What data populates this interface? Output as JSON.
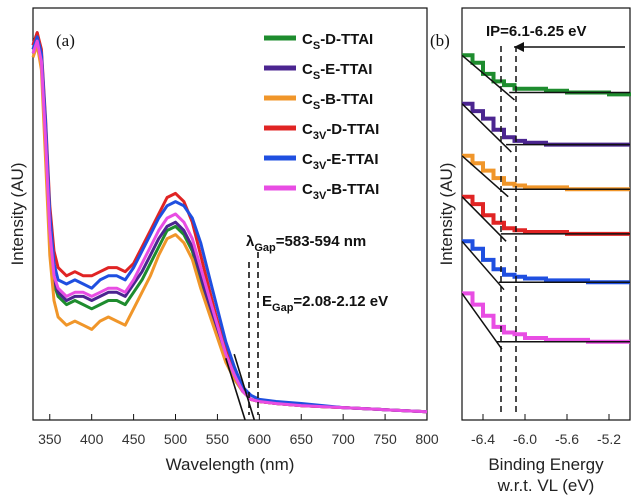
{
  "chart_data": [
    {
      "type": "line",
      "panel_label": "(a)",
      "xlabel": "Wavelength (nm)",
      "ylabel": "Intensity (AU)",
      "xlim": [
        330,
        800
      ],
      "ylim": [
        0,
        1
      ],
      "xticks": [
        350,
        400,
        450,
        500,
        550,
        600,
        650,
        700,
        750,
        800
      ],
      "grid": false,
      "legend_position": "top-right",
      "annotations": {
        "lambda": {
          "symbol": "λ",
          "sub": "Gap",
          "text": "=583-594 nm",
          "values_nm": [
            583,
            594
          ]
        },
        "egap": {
          "symbol": "E",
          "sub": "Gap",
          "text": "=2.08-2.12 eV"
        }
      },
      "series": [
        {
          "main": "C",
          "sub": "S",
          "suffix": "-D-TTAI",
          "color": "#1e8c2e",
          "x": [
            330,
            335,
            340,
            345,
            350,
            355,
            360,
            370,
            380,
            390,
            400,
            410,
            420,
            430,
            440,
            450,
            460,
            470,
            480,
            490,
            500,
            510,
            520,
            530,
            540,
            550,
            560,
            570,
            580,
            590,
            600,
            620,
            650,
            700,
            750,
            800
          ],
          "y": [
            0.9,
            0.93,
            0.88,
            0.68,
            0.45,
            0.33,
            0.3,
            0.28,
            0.29,
            0.28,
            0.27,
            0.28,
            0.29,
            0.29,
            0.28,
            0.31,
            0.34,
            0.38,
            0.42,
            0.46,
            0.47,
            0.45,
            0.41,
            0.34,
            0.27,
            0.21,
            0.15,
            0.1,
            0.07,
            0.05,
            0.045,
            0.04,
            0.035,
            0.03,
            0.025,
            0.02
          ]
        },
        {
          "main": "C",
          "sub": "S",
          "suffix": "-E-TTAI",
          "color": "#4b2590",
          "x": [
            330,
            335,
            340,
            345,
            350,
            355,
            360,
            370,
            380,
            390,
            400,
            410,
            420,
            430,
            440,
            450,
            460,
            470,
            480,
            490,
            500,
            510,
            520,
            530,
            540,
            550,
            560,
            570,
            580,
            590,
            600,
            620,
            650,
            700,
            750,
            800
          ],
          "y": [
            0.91,
            0.94,
            0.89,
            0.7,
            0.47,
            0.34,
            0.31,
            0.29,
            0.3,
            0.3,
            0.29,
            0.3,
            0.31,
            0.31,
            0.3,
            0.33,
            0.36,
            0.4,
            0.44,
            0.47,
            0.48,
            0.46,
            0.42,
            0.35,
            0.28,
            0.22,
            0.16,
            0.11,
            0.07,
            0.05,
            0.045,
            0.04,
            0.035,
            0.03,
            0.025,
            0.02
          ]
        },
        {
          "main": "C",
          "sub": "S",
          "suffix": "-B-TTAI",
          "color": "#f0962a",
          "x": [
            330,
            335,
            340,
            345,
            350,
            355,
            360,
            370,
            380,
            390,
            400,
            410,
            420,
            430,
            440,
            450,
            460,
            470,
            480,
            490,
            500,
            510,
            520,
            530,
            540,
            550,
            560,
            570,
            580,
            590,
            600,
            620,
            650,
            700,
            750,
            800
          ],
          "y": [
            0.88,
            0.91,
            0.85,
            0.63,
            0.4,
            0.29,
            0.25,
            0.23,
            0.24,
            0.23,
            0.22,
            0.24,
            0.25,
            0.24,
            0.23,
            0.27,
            0.31,
            0.35,
            0.4,
            0.44,
            0.45,
            0.43,
            0.39,
            0.32,
            0.26,
            0.2,
            0.14,
            0.1,
            0.07,
            0.05,
            0.045,
            0.04,
            0.035,
            0.03,
            0.025,
            0.02
          ]
        },
        {
          "main": "C",
          "sub": "3V",
          "suffix": "-D-TTAI",
          "color": "#e02424",
          "x": [
            330,
            335,
            340,
            345,
            350,
            355,
            360,
            370,
            380,
            390,
            400,
            410,
            420,
            430,
            440,
            450,
            460,
            470,
            480,
            490,
            500,
            510,
            520,
            530,
            540,
            550,
            560,
            570,
            580,
            590,
            600,
            620,
            650,
            700,
            750,
            800
          ],
          "y": [
            0.91,
            0.94,
            0.9,
            0.73,
            0.52,
            0.41,
            0.37,
            0.35,
            0.36,
            0.35,
            0.35,
            0.36,
            0.37,
            0.37,
            0.36,
            0.38,
            0.42,
            0.46,
            0.5,
            0.54,
            0.55,
            0.53,
            0.48,
            0.4,
            0.32,
            0.24,
            0.17,
            0.11,
            0.07,
            0.05,
            0.045,
            0.04,
            0.035,
            0.03,
            0.025,
            0.02
          ]
        },
        {
          "main": "C",
          "sub": "3V",
          "suffix": "-E-TTAI",
          "color": "#1f4fe0",
          "x": [
            330,
            335,
            340,
            345,
            350,
            355,
            360,
            370,
            380,
            390,
            400,
            410,
            420,
            430,
            440,
            450,
            460,
            470,
            480,
            490,
            500,
            510,
            520,
            530,
            540,
            550,
            560,
            570,
            580,
            590,
            600,
            620,
            650,
            700,
            750,
            800
          ],
          "y": [
            0.9,
            0.93,
            0.89,
            0.72,
            0.5,
            0.38,
            0.34,
            0.33,
            0.34,
            0.33,
            0.32,
            0.34,
            0.35,
            0.35,
            0.34,
            0.37,
            0.41,
            0.45,
            0.49,
            0.52,
            0.53,
            0.52,
            0.49,
            0.43,
            0.35,
            0.27,
            0.19,
            0.13,
            0.08,
            0.06,
            0.05,
            0.045,
            0.04,
            0.03,
            0.025,
            0.02
          ]
        },
        {
          "main": "C",
          "sub": "3V",
          "suffix": "-B-TTAI",
          "color": "#e84de3",
          "x": [
            330,
            335,
            340,
            345,
            350,
            355,
            360,
            370,
            380,
            390,
            400,
            410,
            420,
            430,
            440,
            450,
            460,
            470,
            480,
            490,
            500,
            510,
            520,
            530,
            540,
            550,
            560,
            570,
            580,
            590,
            600,
            620,
            650,
            700,
            750,
            800
          ],
          "y": [
            0.89,
            0.92,
            0.87,
            0.68,
            0.46,
            0.35,
            0.32,
            0.3,
            0.31,
            0.31,
            0.3,
            0.31,
            0.32,
            0.32,
            0.31,
            0.34,
            0.38,
            0.42,
            0.46,
            0.49,
            0.5,
            0.48,
            0.44,
            0.37,
            0.3,
            0.23,
            0.16,
            0.11,
            0.07,
            0.05,
            0.045,
            0.04,
            0.035,
            0.03,
            0.025,
            0.02
          ]
        }
      ]
    },
    {
      "type": "line",
      "panel_label": "(b)",
      "xlabel_line1": "Binding Energy",
      "xlabel_line2": "w.r.t. VL (eV)",
      "ylabel": "Intensity (AU)",
      "xlim": [
        -6.6,
        -5.0
      ],
      "xticks": [
        -6.4,
        -6.0,
        -5.6,
        -5.2
      ],
      "xtick_labels": [
        "-6.4",
        "-6.0",
        "-5.6",
        "-5.2"
      ],
      "grid": false,
      "annotations": {
        "ip": {
          "text": "IP=6.1-6.25 eV",
          "values_eV": [
            -6.25,
            -6.1
          ]
        }
      },
      "series": [
        {
          "color": "#1e8c2e",
          "onset": -6.1,
          "baseline": 0.84,
          "x": [
            -6.6,
            -6.5,
            -6.4,
            -6.3,
            -6.2,
            -6.1,
            -6.0,
            -5.8,
            -5.6,
            -5.4,
            -5.2,
            -5.0
          ],
          "y": [
            0.94,
            0.92,
            0.89,
            0.87,
            0.86,
            0.85,
            0.85,
            0.845,
            0.84,
            0.84,
            0.835,
            0.83
          ]
        },
        {
          "color": "#4b2590",
          "onset": -6.13,
          "baseline": 0.7,
          "x": [
            -6.6,
            -6.5,
            -6.4,
            -6.3,
            -6.2,
            -6.1,
            -6.0,
            -5.8,
            -5.6,
            -5.4,
            -5.2,
            -5.0
          ],
          "y": [
            0.81,
            0.79,
            0.77,
            0.74,
            0.72,
            0.71,
            0.705,
            0.7,
            0.7,
            0.7,
            0.7,
            0.7
          ]
        },
        {
          "color": "#f0962a",
          "onset": -6.16,
          "baseline": 0.58,
          "x": [
            -6.6,
            -6.5,
            -6.4,
            -6.3,
            -6.2,
            -6.1,
            -6.0,
            -5.8,
            -5.6,
            -5.4,
            -5.2,
            -5.0
          ],
          "y": [
            0.67,
            0.65,
            0.63,
            0.61,
            0.595,
            0.59,
            0.585,
            0.585,
            0.58,
            0.58,
            0.58,
            0.58
          ]
        },
        {
          "color": "#e02424",
          "onset": -6.18,
          "baseline": 0.46,
          "x": [
            -6.6,
            -6.5,
            -6.4,
            -6.3,
            -6.2,
            -6.1,
            -6.0,
            -5.8,
            -5.6,
            -5.4,
            -5.2,
            -5.0
          ],
          "y": [
            0.56,
            0.54,
            0.51,
            0.49,
            0.475,
            0.47,
            0.465,
            0.465,
            0.46,
            0.46,
            0.46,
            0.46
          ]
        },
        {
          "color": "#1f4fe0",
          "onset": -6.2,
          "baseline": 0.33,
          "x": [
            -6.6,
            -6.5,
            -6.4,
            -6.3,
            -6.2,
            -6.1,
            -6.0,
            -5.8,
            -5.6,
            -5.4,
            -5.2,
            -5.0
          ],
          "y": [
            0.44,
            0.42,
            0.39,
            0.365,
            0.35,
            0.345,
            0.34,
            0.335,
            0.335,
            0.33,
            0.33,
            0.33
          ]
        },
        {
          "color": "#e84de3",
          "onset": -6.22,
          "baseline": 0.17,
          "x": [
            -6.6,
            -6.5,
            -6.4,
            -6.3,
            -6.2,
            -6.1,
            -6.0,
            -5.8,
            -5.6,
            -5.4,
            -5.2,
            -5.0
          ],
          "y": [
            0.3,
            0.27,
            0.24,
            0.21,
            0.195,
            0.19,
            0.18,
            0.175,
            0.175,
            0.17,
            0.17,
            0.17
          ]
        }
      ]
    }
  ]
}
